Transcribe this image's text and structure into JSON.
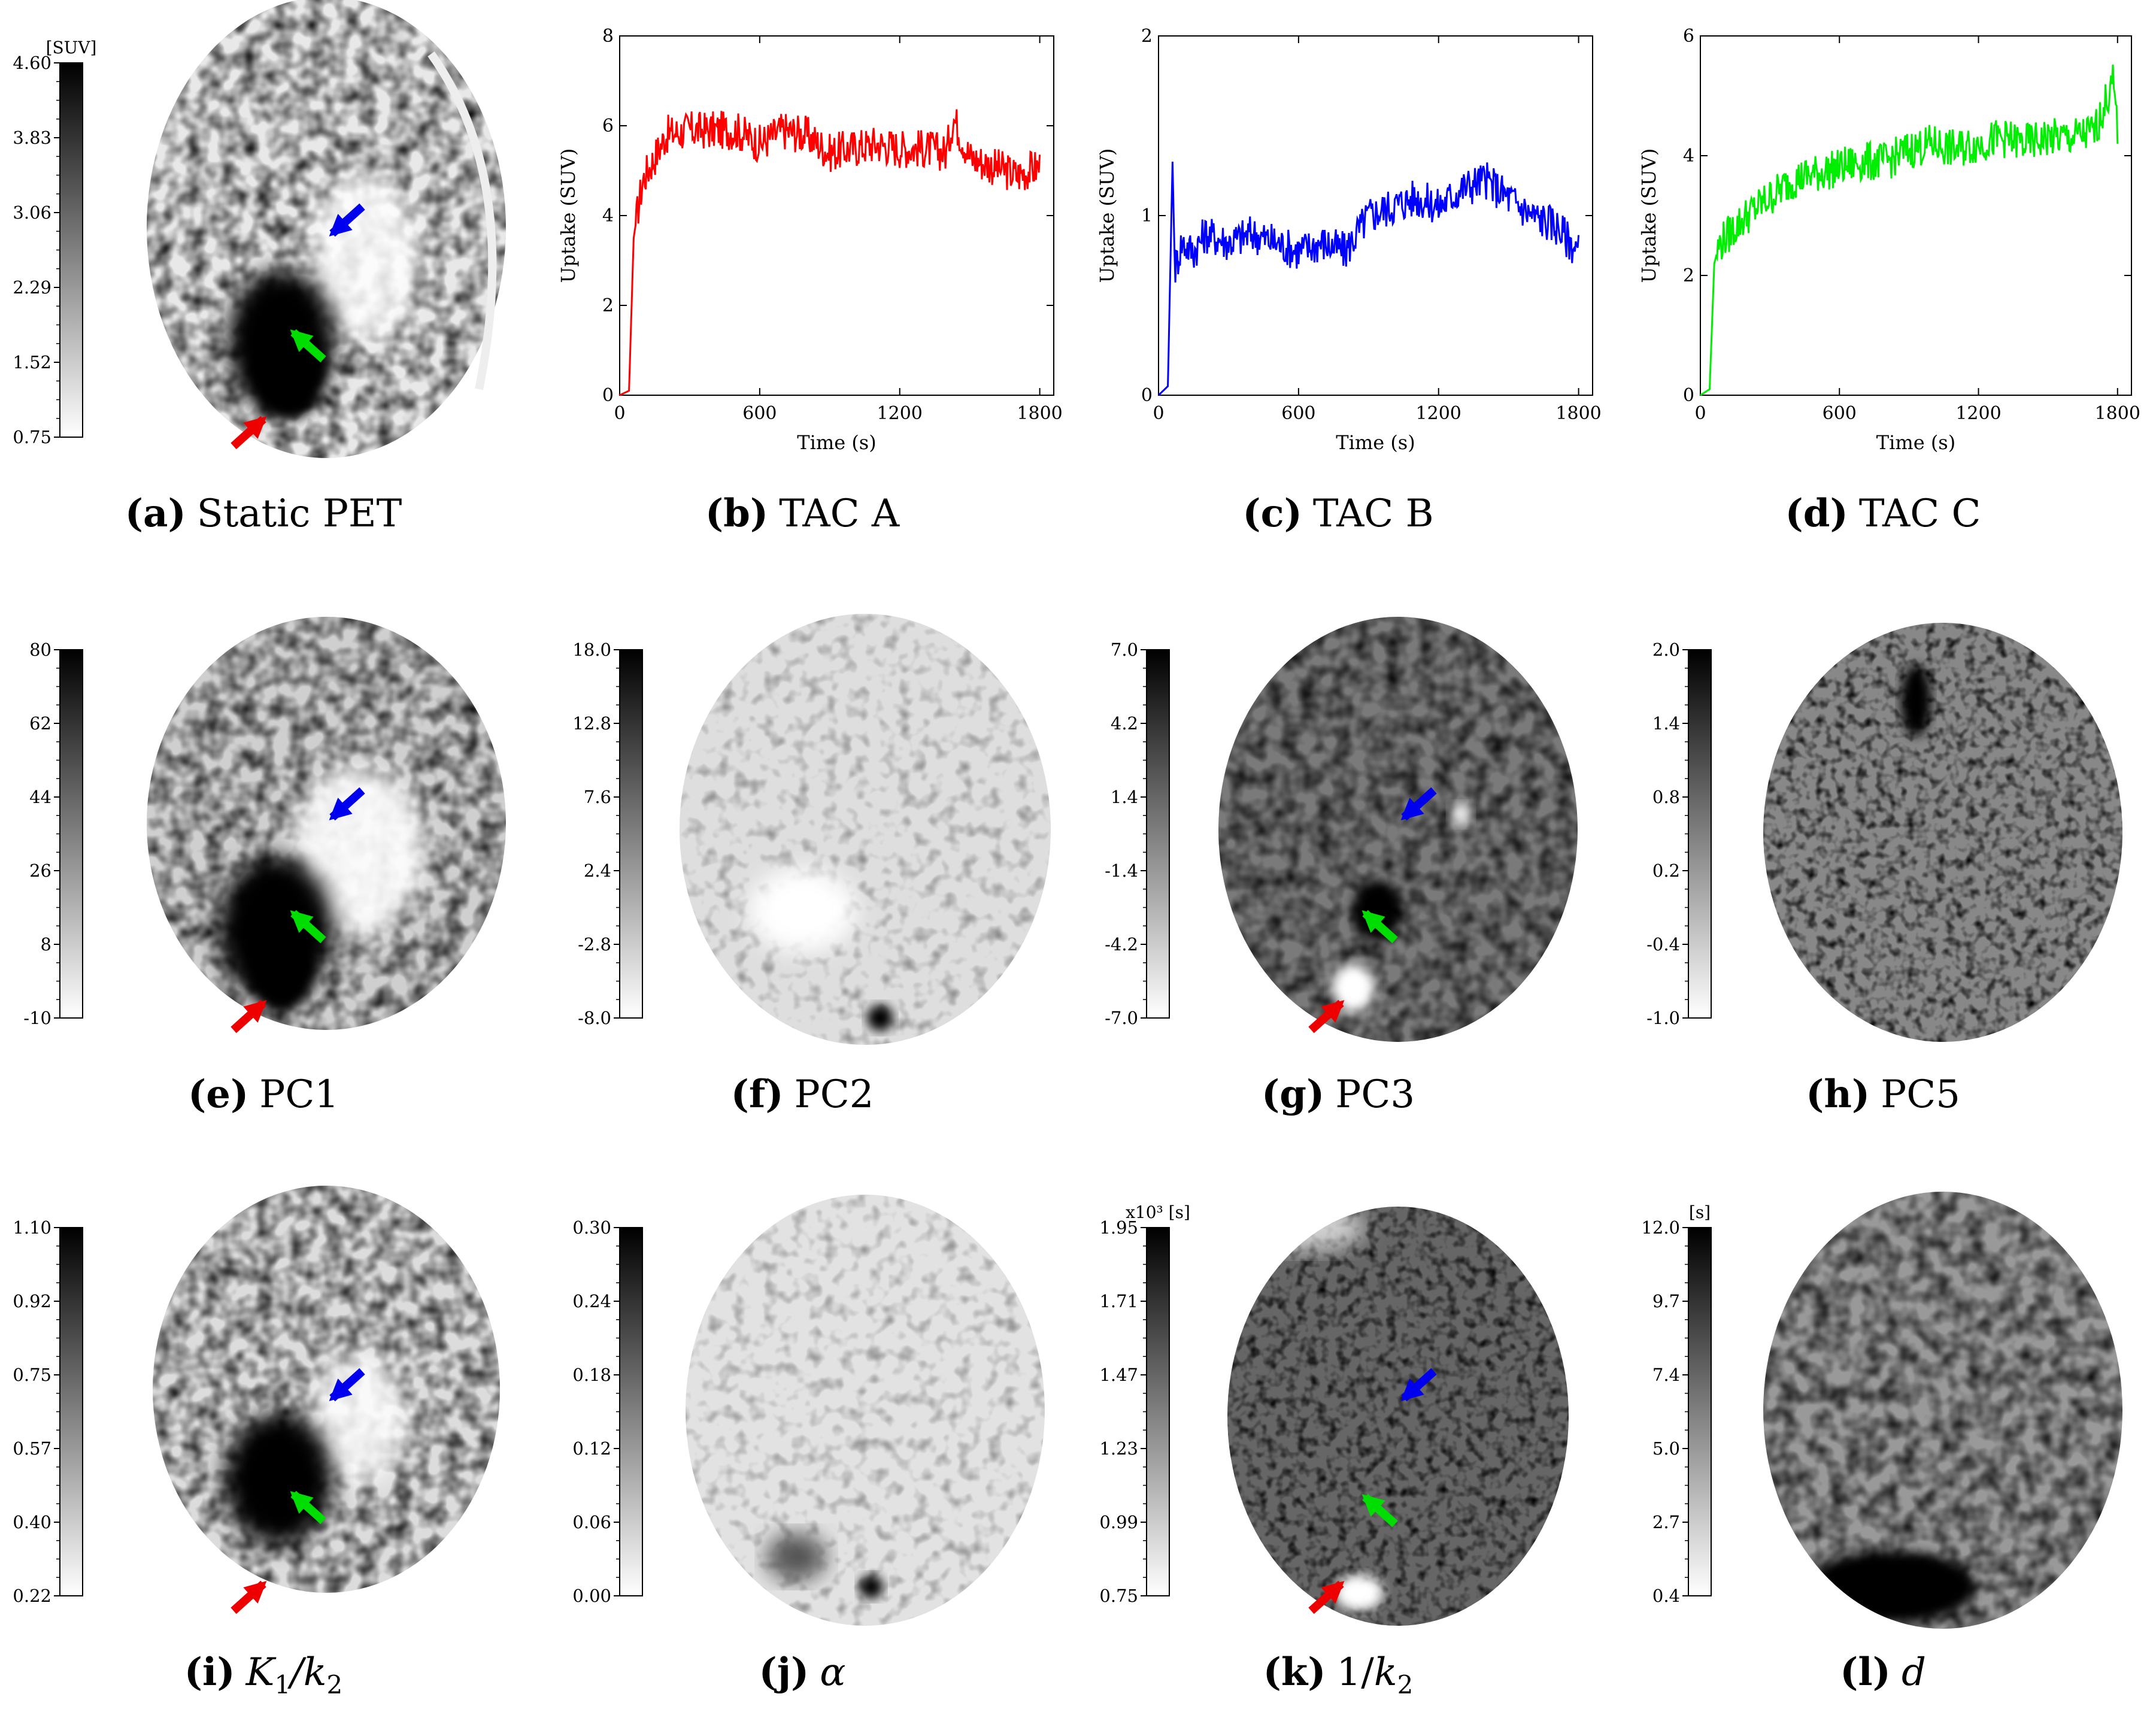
{
  "panels": {
    "a": {
      "label": "(a)",
      "title": "Static PET"
    },
    "b": {
      "label": "(b)",
      "title": "TAC A"
    },
    "c": {
      "label": "(c)",
      "title": "TAC B"
    },
    "d": {
      "label": "(d)",
      "title": "TAC C"
    },
    "e": {
      "label": "(e)",
      "title": "PC1"
    },
    "f": {
      "label": "(f)",
      "title": "PC2"
    },
    "g": {
      "label": "(g)",
      "title": "PC3"
    },
    "h": {
      "label": "(h)",
      "title": "PC5"
    },
    "i": {
      "label": "(i)",
      "title_main": "K",
      "title_sub1": "1",
      "title_slash": "/k",
      "title_sub2": "2"
    },
    "j": {
      "label": "(j)",
      "title": "α"
    },
    "k": {
      "label": "(k)",
      "title_pre": "1/",
      "title_main": "k",
      "title_sub": "2"
    },
    "l": {
      "label": "(l)",
      "title": "d"
    }
  },
  "colorbars": {
    "a": {
      "unit": "[SUV]",
      "ticks": [
        "4.60",
        "3.83",
        "3.06",
        "2.29",
        "1.52",
        "0.75"
      ]
    },
    "e": {
      "unit": "",
      "ticks": [
        "80",
        "62",
        "44",
        "26",
        "8",
        "-10"
      ]
    },
    "f": {
      "unit": "",
      "ticks": [
        "18.0",
        "12.8",
        "7.6",
        "2.4",
        "-2.8",
        "-8.0"
      ]
    },
    "g": {
      "unit": "",
      "ticks": [
        "7.0",
        "4.2",
        "1.4",
        "-1.4",
        "-4.2",
        "-7.0"
      ]
    },
    "h": {
      "unit": "",
      "ticks": [
        "2.0",
        "1.4",
        "0.8",
        "0.2",
        "-0.4",
        "-1.0"
      ]
    },
    "i": {
      "unit": "",
      "ticks": [
        "1.10",
        "0.92",
        "0.75",
        "0.57",
        "0.40",
        "0.22"
      ]
    },
    "j": {
      "unit": "",
      "ticks": [
        "0.30",
        "0.24",
        "0.18",
        "0.12",
        "0.06",
        "0.00"
      ]
    },
    "k": {
      "unit": "x10³ [s]",
      "ticks": [
        "1.95",
        "1.71",
        "1.47",
        "1.23",
        "0.99",
        "0.75"
      ]
    },
    "l": {
      "unit": "[s]",
      "ticks": [
        "12.0",
        "9.7",
        "7.4",
        "5.0",
        "2.7",
        "0.4"
      ]
    }
  },
  "chart_data": [
    {
      "type": "line",
      "panel": "b",
      "title": "TAC A",
      "xlabel": "Time (s)",
      "ylabel": "Uptake (SUV)",
      "xlim": [
        0,
        1860
      ],
      "ylim": [
        0,
        8
      ],
      "xticks": [
        "0",
        "600",
        "1200",
        "1800"
      ],
      "yticks": [
        "0",
        "2",
        "4",
        "6",
        "8"
      ],
      "color": "#ff0000",
      "x": [
        0,
        40,
        60,
        80,
        100,
        150,
        200,
        300,
        400,
        500,
        600,
        700,
        800,
        900,
        1000,
        1100,
        1200,
        1300,
        1400,
        1430,
        1500,
        1600,
        1700,
        1800
      ],
      "y": [
        0,
        0.1,
        3.5,
        4.2,
        4.8,
        5.3,
        5.8,
        5.9,
        5.9,
        5.9,
        5.6,
        5.9,
        5.8,
        5.4,
        5.5,
        5.6,
        5.5,
        5.5,
        5.4,
        6.2,
        5.3,
        5.1,
        4.9,
        5.1
      ]
    },
    {
      "type": "line",
      "panel": "c",
      "title": "TAC B",
      "xlabel": "Time (s)",
      "ylabel": "Uptake (SUV)",
      "xlim": [
        0,
        1860
      ],
      "ylim": [
        0,
        2
      ],
      "xticks": [
        "0",
        "600",
        "1200",
        "1800"
      ],
      "yticks": [
        "0",
        "1",
        "2"
      ],
      "color": "#0000ff",
      "x": [
        0,
        40,
        60,
        70,
        100,
        150,
        200,
        300,
        400,
        500,
        600,
        700,
        800,
        900,
        1000,
        1100,
        1200,
        1300,
        1400,
        1500,
        1600,
        1700,
        1800
      ],
      "y": [
        0,
        0.05,
        1.3,
        0.7,
        0.85,
        0.8,
        0.9,
        0.85,
        0.9,
        0.85,
        0.8,
        0.85,
        0.8,
        1.0,
        1.05,
        1.1,
        1.05,
        1.15,
        1.2,
        1.1,
        1.0,
        0.95,
        0.8
      ]
    },
    {
      "type": "line",
      "panel": "d",
      "title": "TAC C",
      "xlabel": "Time (s)",
      "ylabel": "Uptake (SUV)",
      "xlim": [
        0,
        1860
      ],
      "ylim": [
        0,
        6
      ],
      "xticks": [
        "0",
        "600",
        "1200",
        "1800"
      ],
      "yticks": [
        "0",
        "2",
        "4",
        "6"
      ],
      "color": "#00ee00",
      "x": [
        0,
        40,
        60,
        80,
        100,
        200,
        300,
        400,
        500,
        600,
        700,
        800,
        900,
        1000,
        1100,
        1200,
        1300,
        1400,
        1500,
        1600,
        1700,
        1780,
        1800
      ],
      "y": [
        0,
        0.1,
        2.2,
        2.5,
        2.6,
        3.0,
        3.3,
        3.6,
        3.7,
        3.8,
        3.9,
        3.9,
        4.1,
        4.2,
        4.1,
        4.2,
        4.3,
        4.2,
        4.3,
        4.3,
        4.4,
        5.2,
        4.5
      ]
    }
  ]
}
